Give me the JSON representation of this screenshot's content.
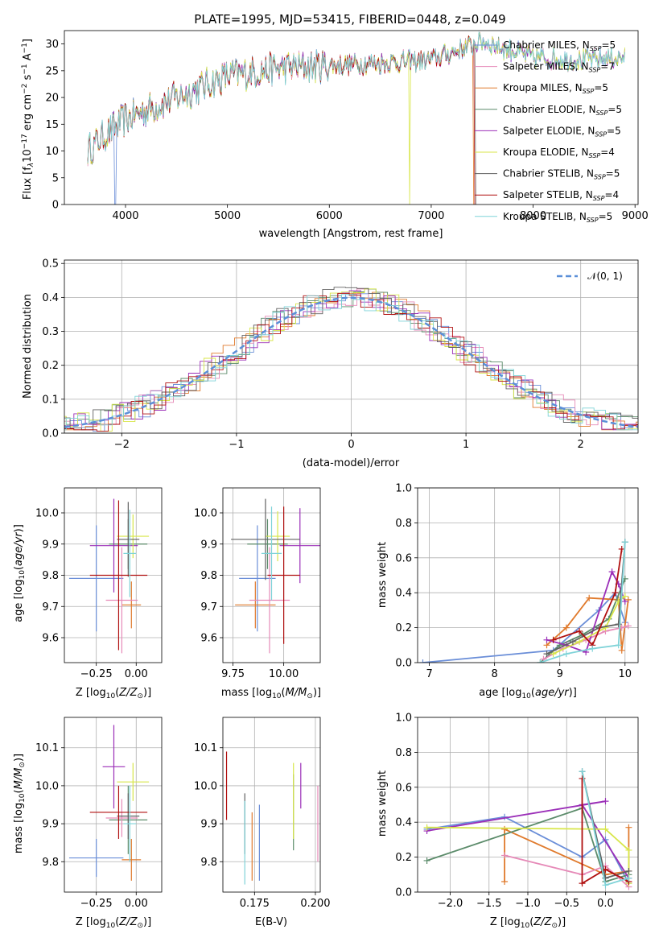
{
  "title": "PLATE=1995, MJD=53415, FIBERID=0448, z=0.049",
  "colors": [
    "#6a8ed8",
    "#e07a2c",
    "#5b8b6a",
    "#e68ab8",
    "#9b2fb8",
    "#d8e64a",
    "#606060",
    "#b01010",
    "#7fd3d8"
  ],
  "legend": [
    {
      "text": "Chabrier MILES, N",
      "sub": "SSP",
      "suf": "=5",
      "color": "#6a8ed8"
    },
    {
      "text": "Salpeter MILES, N",
      "sub": "SSP",
      "suf": "=7",
      "color": "#e68ab8"
    },
    {
      "text": "Kroupa MILES, N",
      "sub": "SSP",
      "suf": "=5",
      "color": "#e07a2c"
    },
    {
      "text": "Chabrier ELODIE, N",
      "sub": "SSP",
      "suf": "=5",
      "color": "#5b8b6a"
    },
    {
      "text": "Salpeter ELODIE, N",
      "sub": "SSP",
      "suf": "=5",
      "color": "#9b2fb8"
    },
    {
      "text": "Kroupa ELODIE, N",
      "sub": "SSP",
      "suf": "=4",
      "color": "#d8e64a"
    },
    {
      "text": "Chabrier STELIB, N",
      "sub": "SSP",
      "suf": "=5",
      "color": "#606060"
    },
    {
      "text": "Salpeter STELIB, N",
      "sub": "SSP",
      "suf": "=4",
      "color": "#b01010"
    },
    {
      "text": "Kroupa STELIB, N",
      "sub": "SSP",
      "suf": "=5",
      "color": "#7fd3d8"
    }
  ],
  "gauss_label": "𝒩(0, 1)",
  "chart_data": [
    {
      "id": "spectrum",
      "type": "line",
      "xlabel": "wavelength [Angstrom, rest frame]",
      "ylabel": "Flux [f",
      "xlim": [
        3400,
        9030
      ],
      "ylim": [
        0,
        32.5
      ],
      "xticks": [
        4000,
        5000,
        6000,
        7000,
        8000,
        9000
      ],
      "yticks": [
        0,
        5,
        10,
        15,
        20,
        25,
        30
      ],
      "continuum": {
        "x": [
          3630,
          3800,
          4000,
          4500,
          5000,
          5500,
          6000,
          6500,
          7000,
          7500,
          8000,
          8500,
          8900
        ],
        "y": [
          10,
          13,
          16,
          20,
          24,
          25.5,
          26,
          26.5,
          27,
          30.5,
          27.5,
          27,
          27.5
        ]
      }
    },
    {
      "id": "residuals",
      "type": "step",
      "xlabel": "(data-model)/error",
      "ylabel": "Normed distribution",
      "xlim": [
        -2.5,
        2.5
      ],
      "ylim": [
        0,
        0.51
      ],
      "xticks": [
        -2,
        -1,
        0,
        1,
        2
      ],
      "yticks": [
        0,
        0.1,
        0.2,
        0.3,
        0.4,
        0.5
      ]
    },
    {
      "id": "age-z",
      "type": "errorbar",
      "xlabel": "Z [log",
      "ylabel": "age  [log",
      "xlim": [
        -0.45,
        0.16
      ],
      "ylim": [
        9.52,
        10.08
      ],
      "xticks": [
        -0.25,
        0.0
      ],
      "yticks": [
        9.6,
        9.7,
        9.8,
        9.9,
        10.0
      ],
      "points": [
        {
          "x": -0.25,
          "xe": 0.17,
          "y": 9.79,
          "ye": 0.17,
          "c": 0
        },
        {
          "x": -0.03,
          "xe": 0.06,
          "y": 9.705,
          "ye": 0.075,
          "c": 1
        },
        {
          "x": -0.05,
          "xe": 0.12,
          "y": 9.9,
          "ye": 0.08,
          "c": 2
        },
        {
          "x": -0.09,
          "xe": 0.1,
          "y": 9.72,
          "ye": 0.17,
          "c": 3
        },
        {
          "x": -0.14,
          "xe": 0.15,
          "y": 9.895,
          "ye": 0.15,
          "c": 4
        },
        {
          "x": -0.02,
          "xe": 0.1,
          "y": 9.925,
          "ye": 0.07,
          "c": 5
        },
        {
          "x": -0.05,
          "xe": 0.07,
          "y": 9.915,
          "ye": 0.12,
          "c": 6
        },
        {
          "x": -0.11,
          "xe": 0.18,
          "y": 9.8,
          "ye": 0.24,
          "c": 7
        },
        {
          "x": -0.04,
          "xe": 0.04,
          "y": 9.87,
          "ye": 0.14,
          "c": 8
        }
      ]
    },
    {
      "id": "age-mass",
      "type": "errorbar",
      "xlabel": "mass [log",
      "ylabel": "",
      "xlim": [
        9.7,
        10.18
      ],
      "ylim": [
        9.52,
        10.08
      ],
      "xticks": [
        9.75,
        10.0
      ],
      "yticks": [
        9.6,
        9.7,
        9.8,
        9.9,
        10.0
      ],
      "points": [
        {
          "x": 9.87,
          "xe": 0.09,
          "y": 9.79,
          "ye": 0.17,
          "c": 0
        },
        {
          "x": 9.86,
          "xe": 0.1,
          "y": 9.705,
          "ye": 0.075,
          "c": 1
        },
        {
          "x": 9.92,
          "xe": 0.1,
          "y": 9.9,
          "ye": 0.08,
          "c": 2
        },
        {
          "x": 9.93,
          "xe": 0.1,
          "y": 9.72,
          "ye": 0.17,
          "c": 3
        },
        {
          "x": 10.08,
          "xe": 0.1,
          "y": 9.895,
          "ye": 0.12,
          "c": 4
        },
        {
          "x": 9.97,
          "xe": 0.06,
          "y": 9.925,
          "ye": 0.08,
          "c": 5
        },
        {
          "x": 9.91,
          "xe": 0.17,
          "y": 9.915,
          "ye": 0.13,
          "c": 6
        },
        {
          "x": 10.0,
          "xe": 0.08,
          "y": 9.8,
          "ye": 0.22,
          "c": 7
        },
        {
          "x": 9.94,
          "xe": 0.05,
          "y": 9.87,
          "ye": 0.15,
          "c": 8
        }
      ]
    },
    {
      "id": "weight-age",
      "type": "line",
      "xlabel": "age  [log",
      "ylabel": "mass weight",
      "xlim": [
        6.82,
        10.2
      ],
      "ylim": [
        0,
        1
      ],
      "xticks": [
        7,
        8,
        9,
        10
      ],
      "yticks": [
        0,
        0.2,
        0.4,
        0.6,
        0.8,
        1.0
      ],
      "series": [
        {
          "c": 0,
          "x": [
            6.9,
            8.9,
            9.6,
            9.85,
            10.0
          ],
          "y": [
            0.0,
            0.07,
            0.3,
            0.4,
            0.23
          ]
        },
        {
          "c": 1,
          "x": [
            8.8,
            9.1,
            9.45,
            9.9,
            9.95,
            10.05
          ],
          "y": [
            0.1,
            0.2,
            0.37,
            0.36,
            0.07,
            0.36
          ]
        },
        {
          "c": 2,
          "x": [
            8.7,
            9.0,
            9.35,
            9.75,
            10.0
          ],
          "y": [
            0.0,
            0.1,
            0.16,
            0.25,
            0.48
          ]
        },
        {
          "c": 3,
          "x": [
            8.75,
            9.05,
            9.4,
            9.7,
            9.95,
            10.05
          ],
          "y": [
            0.02,
            0.08,
            0.13,
            0.18,
            0.2,
            0.21
          ]
        },
        {
          "c": 4,
          "x": [
            8.8,
            9.1,
            9.4,
            9.8,
            9.9,
            10.0
          ],
          "y": [
            0.13,
            0.1,
            0.06,
            0.52,
            0.45,
            0.35
          ]
        },
        {
          "c": 5,
          "x": [
            8.9,
            9.3,
            9.7,
            9.9,
            10.0
          ],
          "y": [
            0.05,
            0.12,
            0.2,
            0.35,
            0.38
          ]
        },
        {
          "c": 6,
          "x": [
            8.8,
            9.2,
            9.6,
            9.9,
            10.0
          ],
          "y": [
            0.05,
            0.12,
            0.2,
            0.22,
            0.69
          ]
        },
        {
          "c": 7,
          "x": [
            8.9,
            9.3,
            9.5,
            9.85,
            9.95
          ],
          "y": [
            0.13,
            0.18,
            0.1,
            0.4,
            0.65
          ]
        },
        {
          "c": 8,
          "x": [
            8.7,
            9.1,
            9.5,
            9.9,
            10.0
          ],
          "y": [
            0.0,
            0.05,
            0.08,
            0.1,
            0.69
          ]
        }
      ]
    },
    {
      "id": "mass-z",
      "type": "errorbar",
      "xlabel": "Z [log",
      "ylabel": "mass [log",
      "xlim": [
        -0.45,
        0.16
      ],
      "ylim": [
        9.72,
        10.18
      ],
      "xticks": [
        -0.25,
        0.0
      ],
      "yticks": [
        9.8,
        9.9,
        10.0,
        10.1
      ],
      "points": [
        {
          "x": -0.25,
          "xe": 0.17,
          "y": 9.81,
          "ye": 0.05,
          "c": 0
        },
        {
          "x": -0.03,
          "xe": 0.06,
          "y": 9.805,
          "ye": 0.055,
          "c": 1
        },
        {
          "x": -0.05,
          "xe": 0.12,
          "y": 9.91,
          "ye": 0.09,
          "c": 2
        },
        {
          "x": -0.09,
          "xe": 0.1,
          "y": 9.915,
          "ye": 0.05,
          "c": 3
        },
        {
          "x": -0.14,
          "xe": 0.07,
          "y": 10.05,
          "ye": 0.11,
          "c": 4
        },
        {
          "x": -0.02,
          "xe": 0.1,
          "y": 10.01,
          "ye": 0.05,
          "c": 5
        },
        {
          "x": -0.05,
          "xe": 0.07,
          "y": 9.92,
          "ye": 0.06,
          "c": 6
        },
        {
          "x": -0.11,
          "xe": 0.18,
          "y": 9.93,
          "ye": 0.07,
          "c": 7
        },
        {
          "x": -0.04,
          "xe": 0.04,
          "y": 9.9,
          "ye": 0.1,
          "c": 8
        }
      ]
    },
    {
      "id": "mass-ebv",
      "type": "errorbar",
      "xlabel": "E(B-V)",
      "ylabel": "",
      "xlim": [
        0.162,
        0.202
      ],
      "ylim": [
        9.72,
        10.18
      ],
      "xticks": [
        0.175,
        0.2
      ],
      "yticks": [
        9.8,
        9.9,
        10.0,
        10.1
      ],
      "points": [
        {
          "x": 0.177,
          "xe": 0,
          "y": 9.85,
          "ye": 0.1,
          "c": 0
        },
        {
          "x": 0.174,
          "xe": 0,
          "y": 9.84,
          "ye": 0.09,
          "c": 1
        },
        {
          "x": 0.191,
          "xe": 0,
          "y": 9.93,
          "ye": 0.1,
          "c": 2
        },
        {
          "x": 0.201,
          "xe": 0,
          "y": 9.9,
          "ye": 0.1,
          "c": 3
        },
        {
          "x": 0.194,
          "xe": 0,
          "y": 10.0,
          "ye": 0.06,
          "c": 4
        },
        {
          "x": 0.191,
          "xe": 0,
          "y": 9.96,
          "ye": 0.1,
          "c": 5
        },
        {
          "x": 0.171,
          "xe": 0,
          "y": 9.9,
          "ye": 0.08,
          "c": 6
        },
        {
          "x": 0.1635,
          "xe": 0,
          "y": 10.0,
          "ye": 0.09,
          "c": 7
        },
        {
          "x": 0.171,
          "xe": 0,
          "y": 9.85,
          "ye": 0.11,
          "c": 8
        }
      ]
    },
    {
      "id": "weight-z",
      "type": "line",
      "xlabel": "Z [log",
      "ylabel": "mass weight",
      "xlim": [
        -2.42,
        0.42
      ],
      "ylim": [
        0,
        1
      ],
      "xticks": [
        -2.0,
        -1.5,
        -1.0,
        -0.5,
        0.0
      ],
      "yticks": [
        0,
        0.2,
        0.4,
        0.6,
        0.8,
        1.0
      ],
      "series": [
        {
          "c": 0,
          "x": [
            -2.3,
            -1.3,
            -0.3,
            0.0,
            0.3
          ],
          "y": [
            0.36,
            0.43,
            0.2,
            0.3,
            0.05
          ]
        },
        {
          "c": 1,
          "x": [
            -1.3,
            -1.3,
            0.0,
            0.3,
            0.3
          ],
          "y": [
            0.06,
            0.36,
            0.1,
            0.12,
            0.37
          ]
        },
        {
          "c": 2,
          "x": [
            -2.3,
            -0.3,
            0.0,
            0.3
          ],
          "y": [
            0.18,
            0.48,
            0.06,
            0.1
          ]
        },
        {
          "c": 3,
          "x": [
            -1.3,
            -0.3,
            0.0,
            0.3
          ],
          "y": [
            0.21,
            0.1,
            0.15,
            0.03
          ]
        },
        {
          "c": 4,
          "x": [
            -2.3,
            0.0,
            -0.3,
            0.3
          ],
          "y": [
            0.35,
            0.52,
            0.5,
            0.08
          ]
        },
        {
          "c": 5,
          "x": [
            -2.3,
            0.0,
            0.3,
            0.3
          ],
          "y": [
            0.37,
            0.36,
            0.24,
            0.05
          ]
        },
        {
          "c": 6,
          "x": [
            -0.3,
            0.0,
            0.3
          ],
          "y": [
            0.69,
            0.08,
            0.12
          ]
        },
        {
          "c": 7,
          "x": [
            -0.3,
            -0.3,
            0.0,
            0.3
          ],
          "y": [
            0.65,
            0.05,
            0.13,
            0.06
          ]
        },
        {
          "c": 8,
          "x": [
            -0.3,
            0.0,
            0.3
          ],
          "y": [
            0.69,
            0.04,
            0.08
          ]
        }
      ]
    }
  ]
}
